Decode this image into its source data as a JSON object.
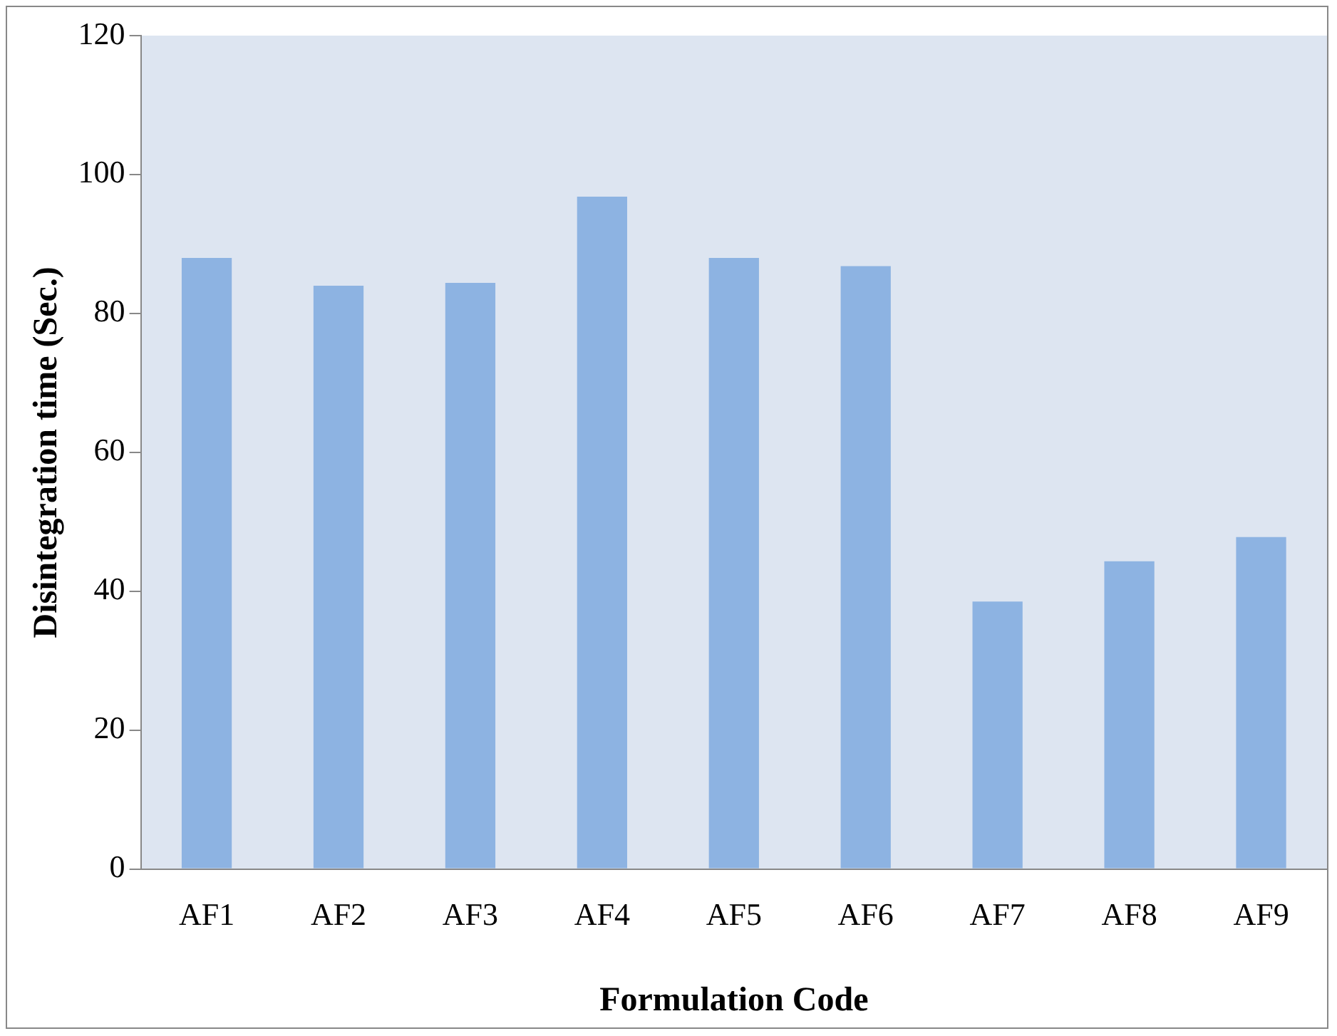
{
  "chart_data": {
    "type": "bar",
    "xlabel": "Formulation Code",
    "ylabel": "Disintegration time (Sec.)",
    "categories": [
      "AF1",
      "AF2",
      "AF3",
      "AF4",
      "AF5",
      "AF6",
      "AF7",
      "AF8",
      "AF9"
    ],
    "values": [
      88,
      84,
      84.4,
      96.8,
      88,
      86.8,
      38.5,
      44.3,
      47.8
    ],
    "color": "#8db3e2",
    "ylim": [
      0,
      120
    ],
    "yticks": [
      0,
      20,
      40,
      60,
      80,
      100,
      120
    ],
    "grid": false
  }
}
